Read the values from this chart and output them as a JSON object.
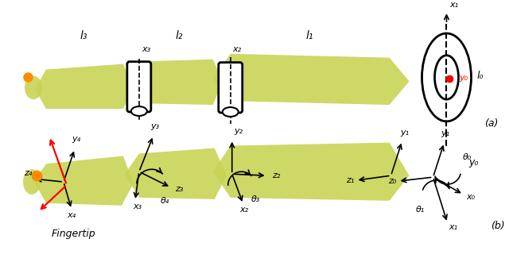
{
  "fig_width": 6.4,
  "fig_height": 3.35,
  "dpi": 100,
  "background_color": "#ffffff",
  "bone_color": "#c8d455",
  "arrow_color": "#000000",
  "red_arrow_color": "#ff0000",
  "orange_dot_color": "#ff8c00",
  "red_dot_color": "#ff0000",
  "annotation_a": "(a)",
  "annotation_b": "(b)",
  "fingertip_label": "Fingertip"
}
